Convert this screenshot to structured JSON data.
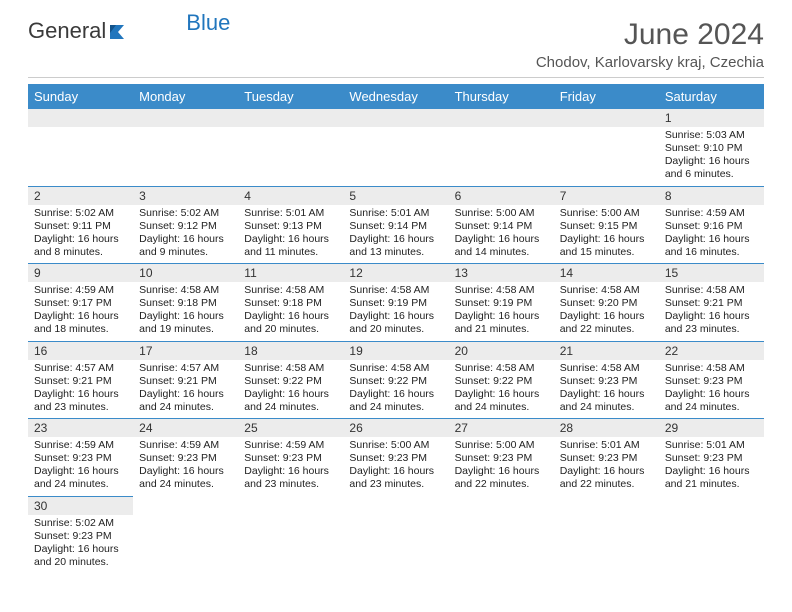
{
  "brand": {
    "general": "General",
    "blue": "Blue"
  },
  "title": {
    "month": "June 2024",
    "location": "Chodov, Karlovarsky kraj, Czechia"
  },
  "colors": {
    "header_bg": "#3b8bc9",
    "header_text": "#ffffff",
    "daynum_bg": "#ececec",
    "border": "#3b8bc9",
    "brand_blue": "#2176bd"
  },
  "dayHeaders": [
    "Sunday",
    "Monday",
    "Tuesday",
    "Wednesday",
    "Thursday",
    "Friday",
    "Saturday"
  ],
  "weeks": [
    [
      {
        "empty": true
      },
      {
        "empty": true
      },
      {
        "empty": true
      },
      {
        "empty": true
      },
      {
        "empty": true
      },
      {
        "empty": true
      },
      {
        "num": "1",
        "sunrise": "5:03 AM",
        "sunset": "9:10 PM",
        "daylight": "16 hours and 6 minutes."
      }
    ],
    [
      {
        "num": "2",
        "sunrise": "5:02 AM",
        "sunset": "9:11 PM",
        "daylight": "16 hours and 8 minutes."
      },
      {
        "num": "3",
        "sunrise": "5:02 AM",
        "sunset": "9:12 PM",
        "daylight": "16 hours and 9 minutes."
      },
      {
        "num": "4",
        "sunrise": "5:01 AM",
        "sunset": "9:13 PM",
        "daylight": "16 hours and 11 minutes."
      },
      {
        "num": "5",
        "sunrise": "5:01 AM",
        "sunset": "9:14 PM",
        "daylight": "16 hours and 13 minutes."
      },
      {
        "num": "6",
        "sunrise": "5:00 AM",
        "sunset": "9:14 PM",
        "daylight": "16 hours and 14 minutes."
      },
      {
        "num": "7",
        "sunrise": "5:00 AM",
        "sunset": "9:15 PM",
        "daylight": "16 hours and 15 minutes."
      },
      {
        "num": "8",
        "sunrise": "4:59 AM",
        "sunset": "9:16 PM",
        "daylight": "16 hours and 16 minutes."
      }
    ],
    [
      {
        "num": "9",
        "sunrise": "4:59 AM",
        "sunset": "9:17 PM",
        "daylight": "16 hours and 18 minutes."
      },
      {
        "num": "10",
        "sunrise": "4:58 AM",
        "sunset": "9:18 PM",
        "daylight": "16 hours and 19 minutes."
      },
      {
        "num": "11",
        "sunrise": "4:58 AM",
        "sunset": "9:18 PM",
        "daylight": "16 hours and 20 minutes."
      },
      {
        "num": "12",
        "sunrise": "4:58 AM",
        "sunset": "9:19 PM",
        "daylight": "16 hours and 20 minutes."
      },
      {
        "num": "13",
        "sunrise": "4:58 AM",
        "sunset": "9:19 PM",
        "daylight": "16 hours and 21 minutes."
      },
      {
        "num": "14",
        "sunrise": "4:58 AM",
        "sunset": "9:20 PM",
        "daylight": "16 hours and 22 minutes."
      },
      {
        "num": "15",
        "sunrise": "4:58 AM",
        "sunset": "9:21 PM",
        "daylight": "16 hours and 23 minutes."
      }
    ],
    [
      {
        "num": "16",
        "sunrise": "4:57 AM",
        "sunset": "9:21 PM",
        "daylight": "16 hours and 23 minutes."
      },
      {
        "num": "17",
        "sunrise": "4:57 AM",
        "sunset": "9:21 PM",
        "daylight": "16 hours and 24 minutes."
      },
      {
        "num": "18",
        "sunrise": "4:58 AM",
        "sunset": "9:22 PM",
        "daylight": "16 hours and 24 minutes."
      },
      {
        "num": "19",
        "sunrise": "4:58 AM",
        "sunset": "9:22 PM",
        "daylight": "16 hours and 24 minutes."
      },
      {
        "num": "20",
        "sunrise": "4:58 AM",
        "sunset": "9:22 PM",
        "daylight": "16 hours and 24 minutes."
      },
      {
        "num": "21",
        "sunrise": "4:58 AM",
        "sunset": "9:23 PM",
        "daylight": "16 hours and 24 minutes."
      },
      {
        "num": "22",
        "sunrise": "4:58 AM",
        "sunset": "9:23 PM",
        "daylight": "16 hours and 24 minutes."
      }
    ],
    [
      {
        "num": "23",
        "sunrise": "4:59 AM",
        "sunset": "9:23 PM",
        "daylight": "16 hours and 24 minutes."
      },
      {
        "num": "24",
        "sunrise": "4:59 AM",
        "sunset": "9:23 PM",
        "daylight": "16 hours and 24 minutes."
      },
      {
        "num": "25",
        "sunrise": "4:59 AM",
        "sunset": "9:23 PM",
        "daylight": "16 hours and 23 minutes."
      },
      {
        "num": "26",
        "sunrise": "5:00 AM",
        "sunset": "9:23 PM",
        "daylight": "16 hours and 23 minutes."
      },
      {
        "num": "27",
        "sunrise": "5:00 AM",
        "sunset": "9:23 PM",
        "daylight": "16 hours and 22 minutes."
      },
      {
        "num": "28",
        "sunrise": "5:01 AM",
        "sunset": "9:23 PM",
        "daylight": "16 hours and 22 minutes."
      },
      {
        "num": "29",
        "sunrise": "5:01 AM",
        "sunset": "9:23 PM",
        "daylight": "16 hours and 21 minutes."
      }
    ],
    [
      {
        "num": "30",
        "sunrise": "5:02 AM",
        "sunset": "9:23 PM",
        "daylight": "16 hours and 20 minutes."
      },
      {
        "empty": true
      },
      {
        "empty": true
      },
      {
        "empty": true
      },
      {
        "empty": true
      },
      {
        "empty": true
      },
      {
        "empty": true
      }
    ]
  ],
  "labels": {
    "sunrise": "Sunrise:",
    "sunset": "Sunset:",
    "daylight": "Daylight:"
  }
}
